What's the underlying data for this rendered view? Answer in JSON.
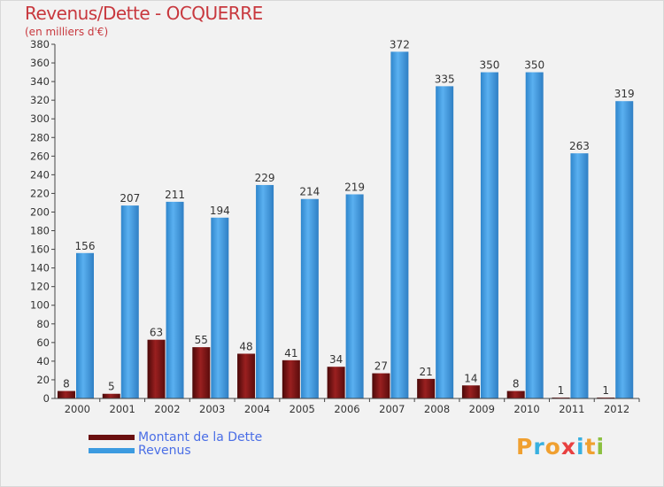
{
  "title": "Revenus/Dette - OCQUERRE",
  "subtitle": "(en milliers d'€)",
  "logo": {
    "text": "Proxiti",
    "letters": [
      {
        "ch": "P",
        "color": "#f0a030"
      },
      {
        "ch": "r",
        "color": "#38b0e0"
      },
      {
        "ch": "o",
        "color": "#f0a030"
      },
      {
        "ch": "x",
        "color": "#e84040"
      },
      {
        "ch": "i",
        "color": "#38b0e0"
      },
      {
        "ch": "t",
        "color": "#f0a030"
      },
      {
        "ch": "i",
        "color": "#8cc040"
      }
    ]
  },
  "chart_data": {
    "type": "bar",
    "title": "Revenus/Dette - OCQUERRE",
    "subtitle": "(en milliers d'€)",
    "categories": [
      "2000",
      "2001",
      "2002",
      "2003",
      "2004",
      "2005",
      "2006",
      "2007",
      "2008",
      "2009",
      "2010",
      "2011",
      "2012"
    ],
    "series": [
      {
        "name": "Montant de la Dette",
        "color": "#8a1a1a",
        "values": [
          8,
          5,
          63,
          55,
          48,
          41,
          34,
          27,
          21,
          14,
          8,
          1,
          1
        ]
      },
      {
        "name": "Revenus",
        "color": "#3c9be0",
        "values": [
          156,
          207,
          211,
          194,
          229,
          214,
          219,
          372,
          335,
          350,
          350,
          263,
          319
        ]
      }
    ],
    "ylim": [
      0,
      380
    ],
    "ytick_step": 20,
    "grid": false,
    "legend_position": "bottom-left"
  }
}
